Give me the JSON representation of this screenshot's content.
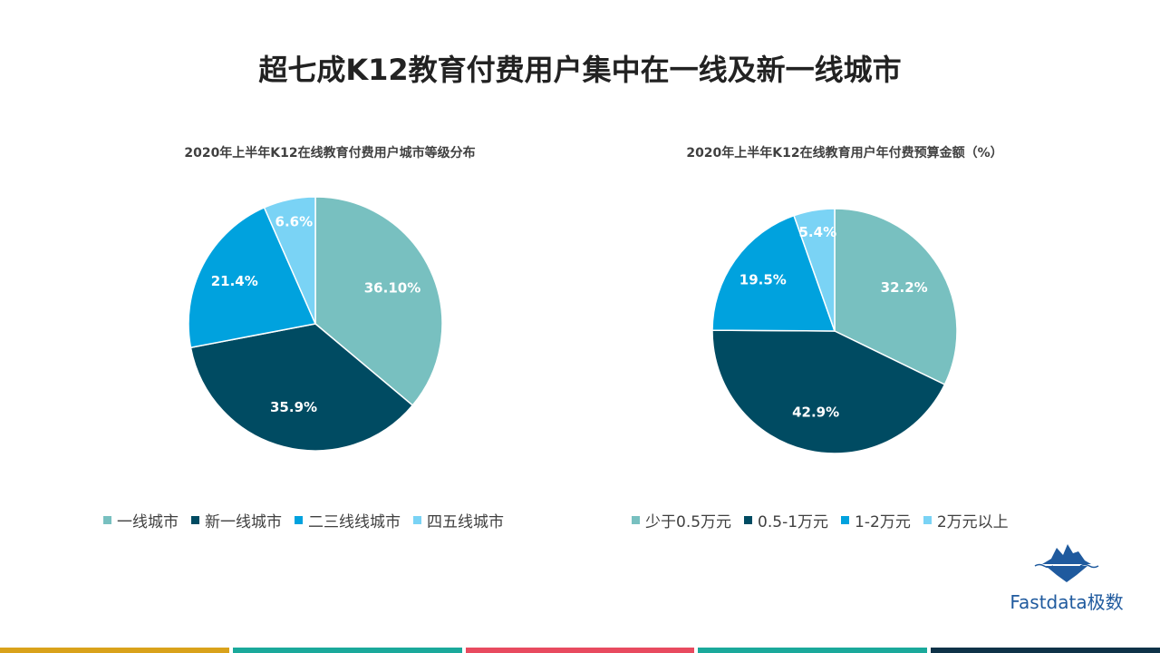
{
  "page": {
    "title": "超七成K12教育付费用户集中在一线及新一线城市",
    "logo_text": "Fastdata极数",
    "bottom_bar_colors": [
      "#d9a21b",
      "#1aa99b",
      "#e84a5f",
      "#1aa99b",
      "#0e3248"
    ]
  },
  "chart_data": [
    {
      "type": "pie",
      "title": "2020年上半年K12在线教育付费用户城市等级分布",
      "categories": [
        "一线城市",
        "新一线城市",
        "二三线线城市",
        "四五线城市"
      ],
      "values": [
        36.1,
        35.9,
        21.4,
        6.6
      ],
      "labels": [
        "36.10%",
        "35.9%",
        "21.4%",
        "6.6%"
      ],
      "colors": [
        "#78c0c0",
        "#004b62",
        "#00a2de",
        "#7ad3f5"
      ],
      "legend": "bottom"
    },
    {
      "type": "pie",
      "title": "2020年上半年K12在线教育用户年付费预算金额（%）",
      "categories": [
        "少于0.5万元",
        "0.5-1万元",
        "1-2万元",
        "2万元以上"
      ],
      "values": [
        32.2,
        42.9,
        19.5,
        5.4
      ],
      "labels": [
        "32.2%",
        "42.9%",
        "19.5%",
        "5.4%"
      ],
      "colors": [
        "#78c0c0",
        "#004b62",
        "#00a2de",
        "#7ad3f5"
      ],
      "legend": "bottom"
    }
  ]
}
